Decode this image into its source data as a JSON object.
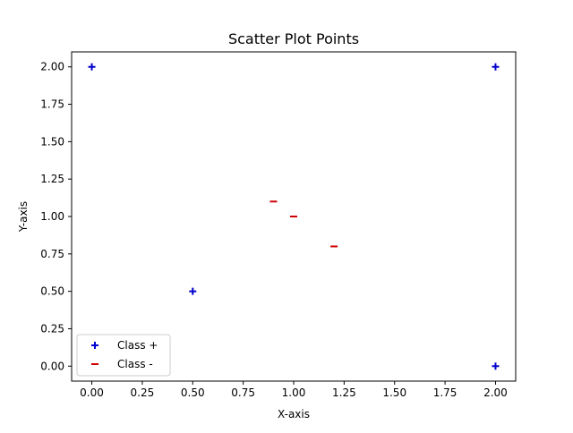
{
  "chart_data": {
    "type": "scatter",
    "title": "Scatter Plot Points",
    "xlabel": "X-axis",
    "ylabel": "Y-axis",
    "xlim": [
      -0.1,
      2.1
    ],
    "ylim": [
      -0.1,
      2.1
    ],
    "xticks": [
      0.0,
      0.25,
      0.5,
      0.75,
      1.0,
      1.25,
      1.5,
      1.75,
      2.0
    ],
    "xtick_labels": [
      "0.00",
      "0.25",
      "0.50",
      "0.75",
      "1.00",
      "1.25",
      "1.50",
      "1.75",
      "2.00"
    ],
    "yticks": [
      0.0,
      0.25,
      0.5,
      0.75,
      1.0,
      1.25,
      1.5,
      1.75,
      2.0
    ],
    "ytick_labels": [
      "0.00",
      "0.25",
      "0.50",
      "0.75",
      "1.00",
      "1.25",
      "1.50",
      "1.75",
      "2.00"
    ],
    "grid": false,
    "legend_position": "lower-left",
    "series": [
      {
        "name": "Class +",
        "marker": "plus",
        "color": "#0000cc",
        "points": [
          [
            0,
            2
          ],
          [
            0.5,
            0.5
          ],
          [
            2,
            2
          ],
          [
            2,
            0
          ]
        ]
      },
      {
        "name": "Class -",
        "marker": "minus",
        "color": "#cc0000",
        "points": [
          [
            0.9,
            1.1
          ],
          [
            1.0,
            1.0
          ],
          [
            1.2,
            0.8
          ]
        ]
      }
    ]
  }
}
